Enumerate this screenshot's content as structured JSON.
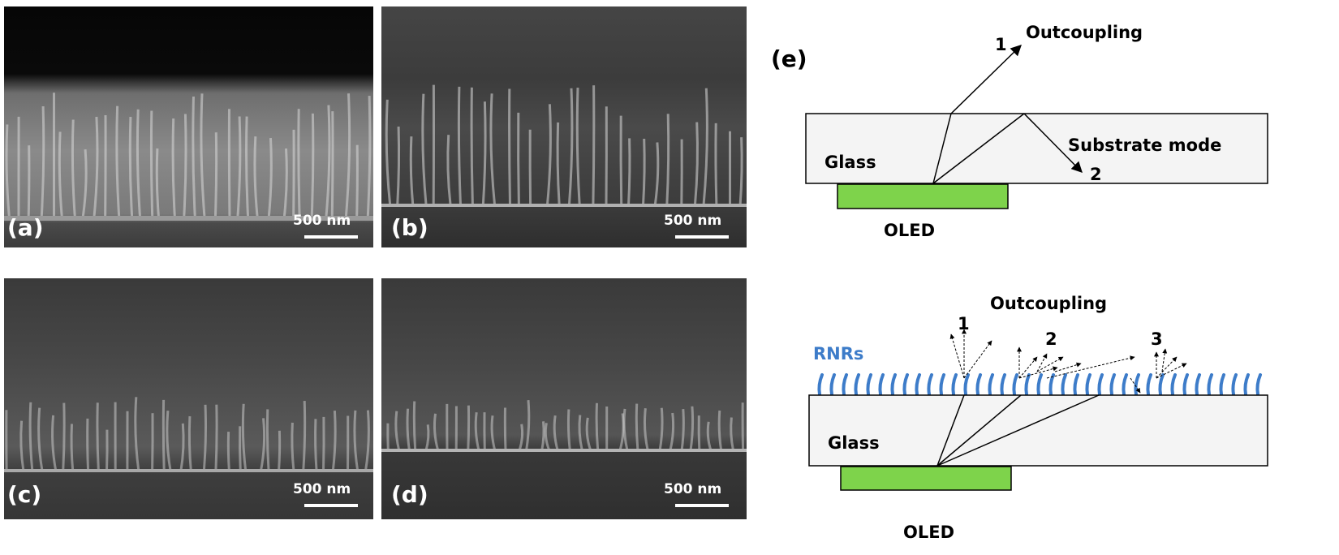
{
  "panels": [
    {
      "letter": "(a)",
      "scale": "500 nm"
    },
    {
      "letter": "(b)",
      "scale": "500 nm"
    },
    {
      "letter": "(c)",
      "scale": "500 nm"
    },
    {
      "letter": "(d)",
      "scale": "500 nm"
    }
  ],
  "diagram": {
    "letter": "(e)",
    "top": {
      "outcoupling": "Outcoupling",
      "ray1": "1",
      "substrate_mode": "Substrate mode",
      "ray2": "2",
      "glass": "Glass",
      "oled": "OLED"
    },
    "bottom": {
      "outcoupling": "Outcoupling",
      "ray1": "1",
      "ray2": "2",
      "ray3": "3",
      "rnrs": "RNRs",
      "glass": "Glass",
      "oled": "OLED"
    }
  },
  "colors": {
    "oled": "#7ed34b",
    "glass_fill": "#f4f4f4",
    "rnrs": "#3d7cc9",
    "sem_background": "#3a3a3a"
  }
}
